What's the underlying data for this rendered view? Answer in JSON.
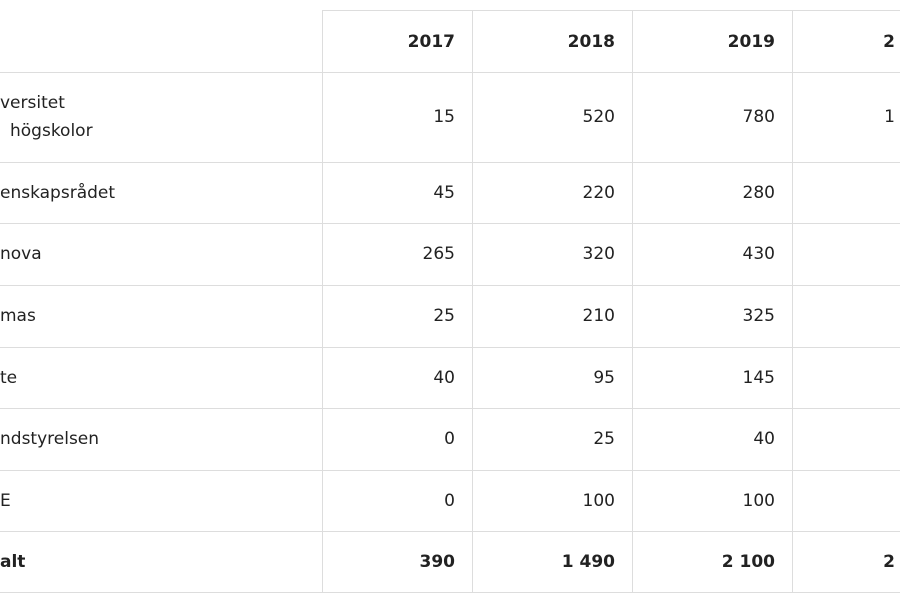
{
  "table": {
    "header": [
      "2017",
      "2018",
      "2019",
      "2"
    ],
    "rows": [
      {
        "label": [
          "versitet",
          "högskolor"
        ],
        "cells": [
          "15",
          "520",
          "780",
          "1"
        ]
      },
      {
        "label": [
          "enskapsrådet"
        ],
        "cells": [
          "45",
          "220",
          "280"
        ]
      },
      {
        "label": [
          "nova"
        ],
        "cells": [
          "265",
          "320",
          "430"
        ]
      },
      {
        "label": [
          "mas"
        ],
        "cells": [
          "25",
          "210",
          "325"
        ]
      },
      {
        "label": [
          "te"
        ],
        "cells": [
          "40",
          "95",
          "145"
        ]
      },
      {
        "label": [
          "ndstyrelsen"
        ],
        "cells": [
          "0",
          "25",
          "40"
        ]
      },
      {
        "label": [
          "E"
        ],
        "cells": [
          "0",
          "100",
          "100"
        ]
      },
      {
        "label": [
          "alt"
        ],
        "cells": [
          "390",
          "1 490",
          "2 100",
          "2"
        ],
        "bold": true
      }
    ]
  }
}
